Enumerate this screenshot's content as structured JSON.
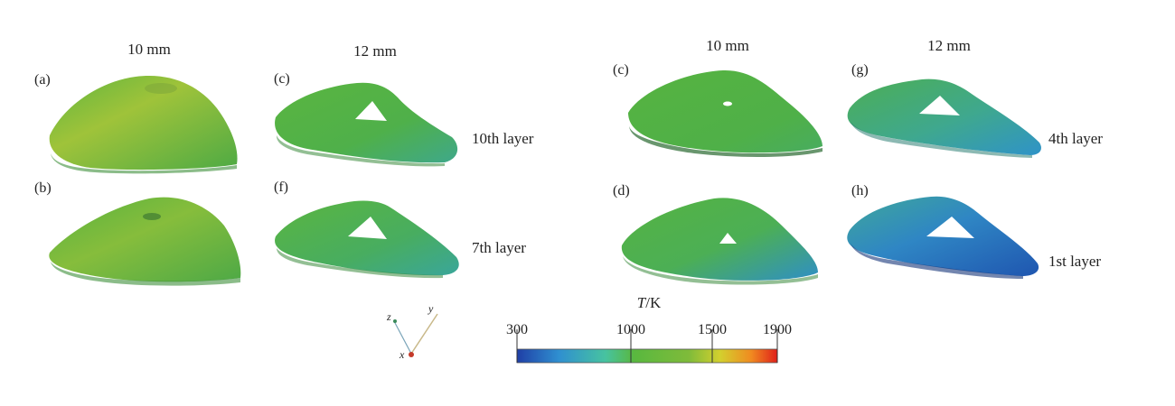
{
  "columns": [
    "10 mm",
    "12 mm",
    "10 mm",
    "12 mm"
  ],
  "panels": [
    "(a)",
    "(b)",
    "(c)",
    "(f)",
    "(c)",
    "(d)",
    "(g)",
    "(h)"
  ],
  "layers": [
    "10th layer",
    "7th layer",
    "4th layer",
    "1st layer"
  ],
  "colorbar": {
    "title_T": "T",
    "title_unit": "/K",
    "ticks": [
      "300",
      "1000",
      "1500",
      "1900"
    ],
    "tick_values": [
      300,
      1000,
      1500,
      1900
    ],
    "min": 300,
    "max": 1900,
    "colors": [
      "#1f3fa6",
      "#2f8fd0",
      "#47c3a0",
      "#59b83f",
      "#63b53a",
      "#c9cf30",
      "#f08a20",
      "#e0201a"
    ]
  },
  "axes_triad": {
    "x": "x",
    "y": "y",
    "z": "z"
  }
}
